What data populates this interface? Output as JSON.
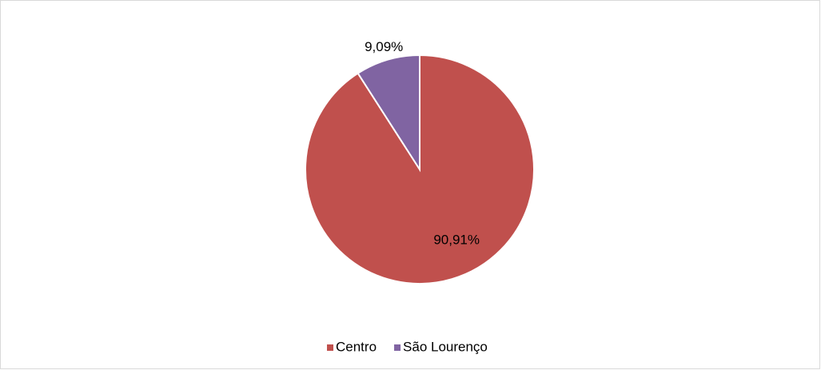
{
  "chart_data": {
    "type": "pie",
    "categories": [
      "Centro",
      "São Lourenço"
    ],
    "values": [
      90.91,
      9.09
    ],
    "value_labels": [
      "90,91%",
      "9,09%"
    ],
    "colors": [
      "#c0504d",
      "#8064a2"
    ],
    "legend": "bottom"
  }
}
